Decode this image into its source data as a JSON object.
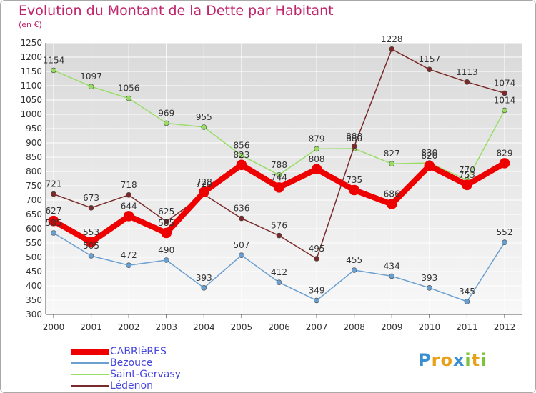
{
  "title": "Evolution du Montant de la Dette par Habitant",
  "subtitle": "(en €)",
  "brand": {
    "letters": [
      "P",
      "r",
      "o",
      "x",
      "i",
      "t",
      "i"
    ],
    "colors": [
      "#3a8fd0",
      "#e8a21a",
      "#e8a21a",
      "#3a8fd0",
      "#7ec23a",
      "#e8a21a",
      "#7ec23a"
    ]
  },
  "chart_data": {
    "type": "line",
    "title": "Evolution du Montant de la Dette par Habitant",
    "ylabel": "(en €)",
    "xlabel": "",
    "x": [
      "2000",
      "2001",
      "2002",
      "2003",
      "2004",
      "2005",
      "2006",
      "2007",
      "2008",
      "2009",
      "2010",
      "2011",
      "2012"
    ],
    "ylim": [
      300,
      1250
    ],
    "yticks": [
      300,
      350,
      400,
      450,
      500,
      550,
      600,
      650,
      700,
      750,
      800,
      850,
      900,
      950,
      1000,
      1050,
      1100,
      1150,
      1200,
      1250
    ],
    "grid": true,
    "legend_position": "bottom-left",
    "series": [
      {
        "name": "CABRIèRES",
        "color": "#ee0000",
        "width": 8,
        "values": [
          627,
          553,
          644,
          585,
          728,
          823,
          744,
          808,
          735,
          686,
          820,
          753,
          829
        ]
      },
      {
        "name": "Bezouce",
        "color": "#6a9fd0",
        "width": 1.5,
        "values": [
          585,
          505,
          472,
          490,
          393,
          507,
          412,
          349,
          455,
          434,
          393,
          345,
          552
        ]
      },
      {
        "name": "Saint-Gervasy",
        "color": "#99dd66",
        "width": 1.5,
        "values": [
          1154,
          1097,
          1056,
          969,
          955,
          856,
          788,
          879,
          880,
          827,
          830,
          770,
          1014
        ]
      },
      {
        "name": "Lédenon",
        "color": "#7a2a2a",
        "width": 1.5,
        "values": [
          721,
          673,
          718,
          625,
          720,
          636,
          576,
          495,
          888,
          1228,
          1157,
          1113,
          1074
        ]
      }
    ]
  }
}
